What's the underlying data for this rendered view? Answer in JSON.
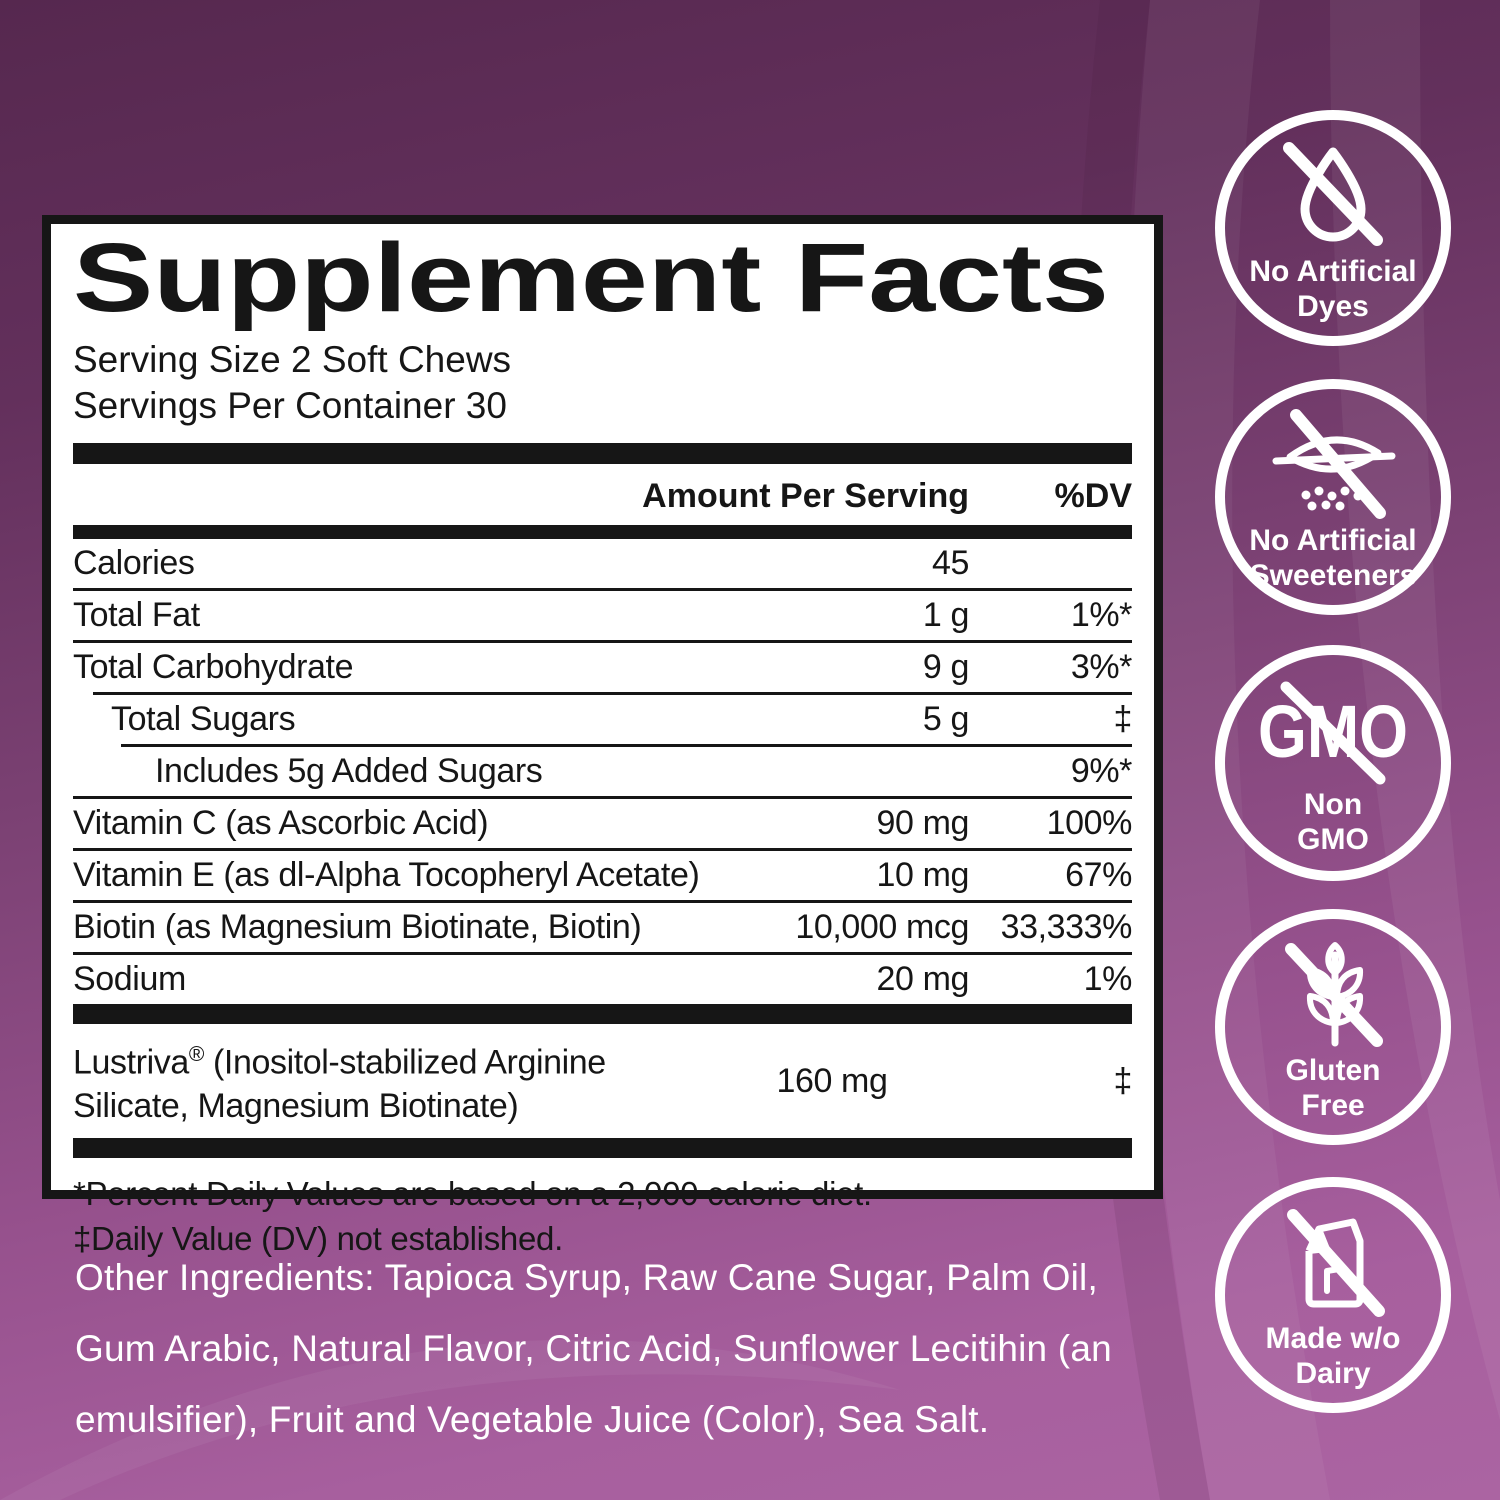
{
  "colors": {
    "background_dark": "#56284f",
    "background_light": "#ab64a2",
    "panel_background": "#ffffff",
    "panel_text": "#161616",
    "badge_white": "#ffffff"
  },
  "panel": {
    "title": "Supplement Facts",
    "serving_size": "Serving Size 2 Soft Chews",
    "servings_per_container": "Servings Per Container 30",
    "columns": {
      "amount": "Amount Per Serving",
      "dv": "%DV"
    },
    "rows": [
      {
        "name": "Calories",
        "amount": "45",
        "dv": "",
        "indent": 0
      },
      {
        "name": "Total Fat",
        "amount": "1 g",
        "dv": "1%*",
        "indent": 0
      },
      {
        "name": "Total Carbohydrate",
        "amount": "9 g",
        "dv": "3%*",
        "indent": 0
      },
      {
        "name": "Total Sugars",
        "amount": "5 g",
        "dv": "‡",
        "indent": 1
      },
      {
        "name": "Includes 5g Added Sugars",
        "amount": "",
        "dv": "9%*",
        "indent": 2
      },
      {
        "name": "Vitamin C (as Ascorbic Acid)",
        "amount": "90 mg",
        "dv": "100%",
        "indent": 0
      },
      {
        "name": "Vitamin E (as dl-Alpha Tocopheryl Acetate)",
        "amount": "10 mg",
        "dv": "67%",
        "indent": 0
      },
      {
        "name": "Biotin (as Magnesium Biotinate, Biotin)",
        "amount": "10,000 mcg",
        "dv": "33,333%",
        "indent": 0
      },
      {
        "name": "Sodium",
        "amount": "20 mg",
        "dv": "1%",
        "indent": 0
      }
    ],
    "special_row": {
      "brand": "Lustriva",
      "reg": "®",
      "rest": " (Inositol-stabilized Arginine Silicate, Magnesium Biotinate)",
      "amount": "160 mg",
      "dv": "‡"
    },
    "footnotes": [
      "*Percent Daily Values are based on a 2,000 calorie diet.",
      "‡Daily Value (DV) not established."
    ]
  },
  "other_ingredients": "Other Ingredients: Tapioca Syrup, Raw Cane Sugar, Palm Oil, Gum Arabic, Natural Flavor, Citric Acid, Sunflower Lecitihin (an emulsifier), Fruit and Vegetable Juice (Color), Sea Salt.",
  "badges": [
    {
      "icon": "droplet-slash-icon",
      "label": "No Artificial\nDyes"
    },
    {
      "icon": "sweetener-packet-slash-icon",
      "label": "No Artificial\nSweeteners"
    },
    {
      "icon": "gmo-slash-icon",
      "gmo_text": "GMO",
      "label": "Non\nGMO"
    },
    {
      "icon": "wheat-slash-icon",
      "label": "Gluten\nFree"
    },
    {
      "icon": "milk-carton-slash-icon",
      "label": "Made w/o\nDairy"
    }
  ]
}
